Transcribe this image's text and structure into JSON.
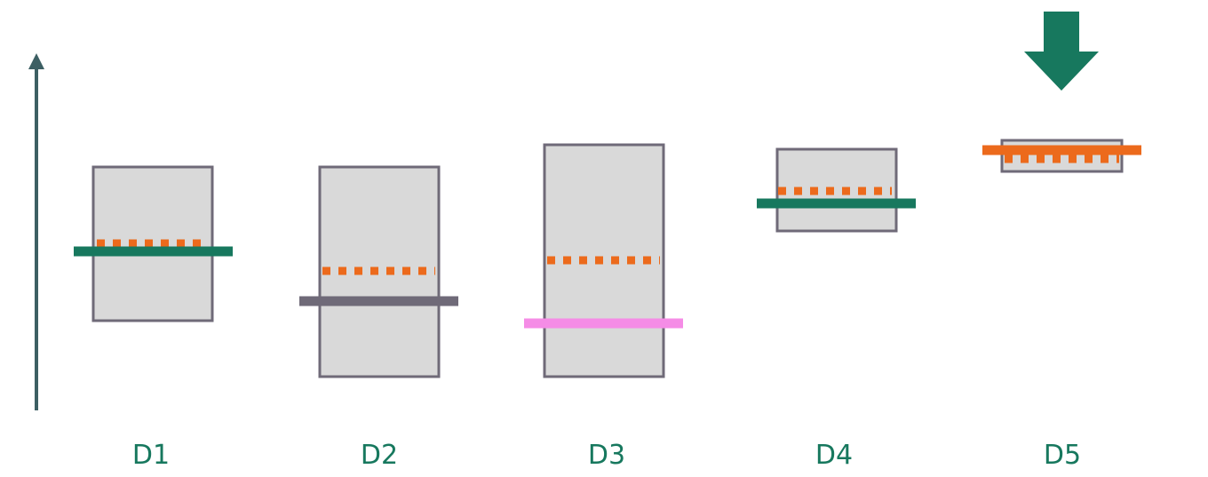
{
  "colors": {
    "box_fill": "#d9d9d9",
    "box_stroke": "#6f6a78",
    "axis": "#3d5f63",
    "teal": "#17785e",
    "gray_line": "#6f6a78",
    "pink": "#f58ce6",
    "orange": "#ec6a1c",
    "label": "#17785e"
  },
  "columns": [
    {
      "label": "D1",
      "reference_line": "teal"
    },
    {
      "label": "D2",
      "reference_line": "gray"
    },
    {
      "label": "D3",
      "reference_line": "pink"
    },
    {
      "label": "D4",
      "reference_line": "teal"
    },
    {
      "label": "D5",
      "reference_line": "orange",
      "has_down_arrow": true
    }
  ],
  "icons": {
    "vertical_axis": "up-arrow-icon",
    "marker": "down-arrow-icon"
  }
}
